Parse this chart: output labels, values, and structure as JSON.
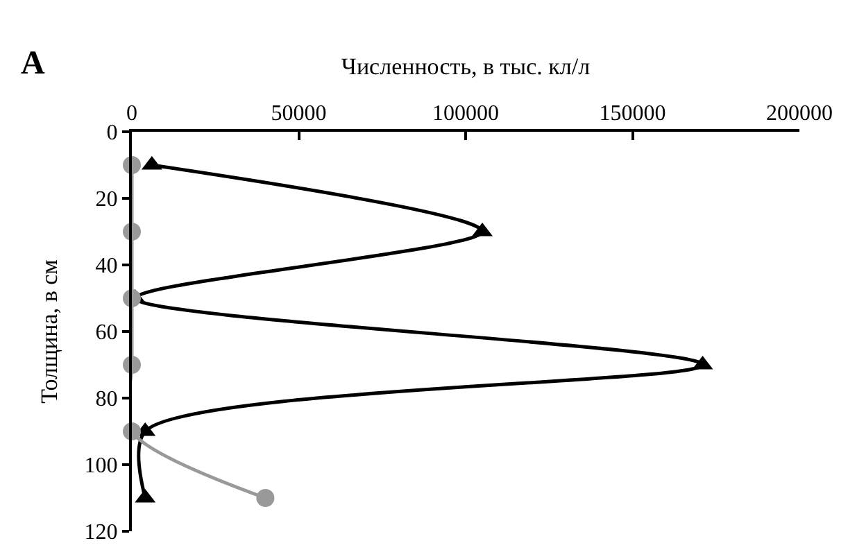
{
  "chart_data": {
    "type": "line",
    "orientation": "horizontal",
    "xlabel": "Численность, в тыс. кл/л",
    "ylabel": "Толщина, в см",
    "annotations": [
      "A"
    ],
    "x": [
      10,
      30,
      50,
      70,
      90,
      110
    ],
    "series": [
      {
        "color": "#000000",
        "values": [
          6000,
          105000,
          1000,
          171000,
          4000,
          4000
        ],
        "marker": "triangle"
      },
      {
        "color": "#999999",
        "values": [
          0,
          0,
          0,
          0,
          0,
          40000
        ],
        "marker": "circle"
      }
    ],
    "xlim": [
      0,
      200000
    ],
    "xticks": [
      0,
      50000,
      100000,
      150000,
      200000
    ],
    "ylim": [
      120,
      0
    ],
    "yticks": [
      0,
      20,
      40,
      60,
      80,
      100,
      120
    ],
    "legend": false
  }
}
